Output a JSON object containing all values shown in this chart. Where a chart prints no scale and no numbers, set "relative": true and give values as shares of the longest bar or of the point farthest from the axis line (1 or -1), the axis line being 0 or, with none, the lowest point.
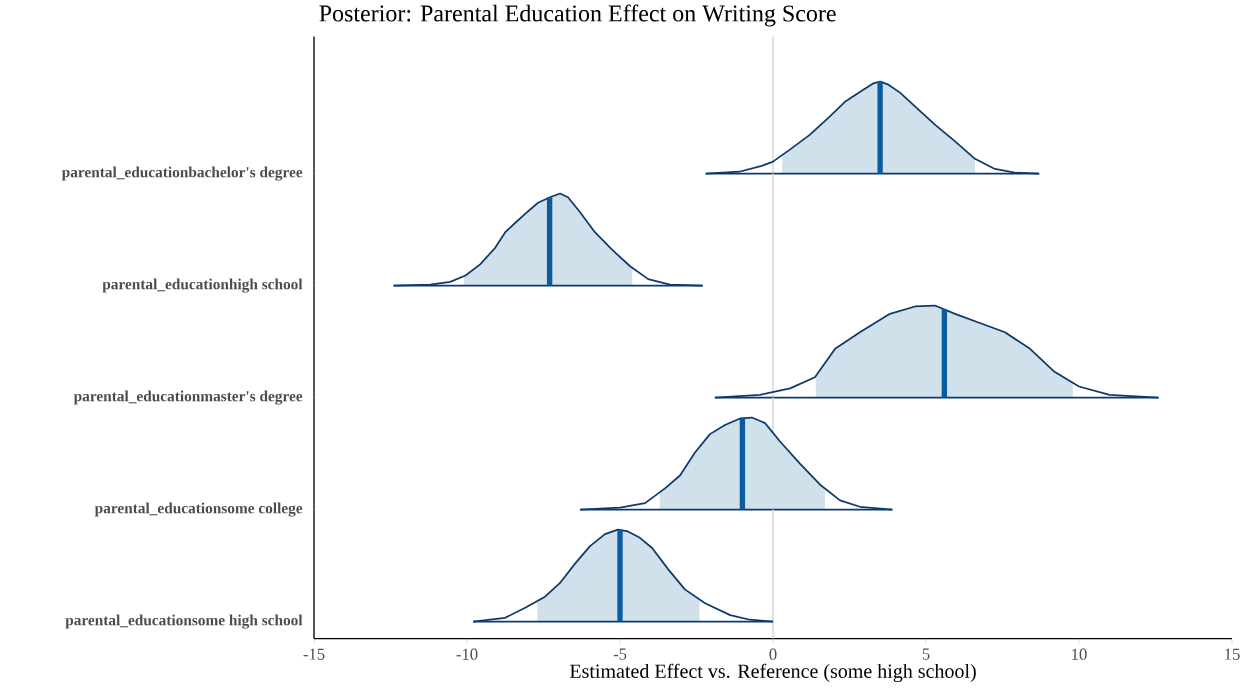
{
  "chart_data": [
    {
      "type": "area",
      "title": "Posterior: Parental Education Effect on Writing Score",
      "ylabel": "parental_educationbachelor's degree",
      "relative": true,
      "xlim": [
        -15,
        15
      ],
      "tick_labels": false,
      "ref_lines": [
        {
          "axis": "x",
          "value": 0,
          "color": "#d9d9d9"
        }
      ],
      "series": [
        {
          "color": "#d1e1ec",
          "x": [
            0.3,
            0.55,
            1.2,
            1.85,
            2.35,
            2.85,
            3.27,
            3.5,
            3.75,
            4.15,
            4.64,
            5.3,
            5.95,
            6.6
          ],
          "values": [
            0.2,
            0.26,
            0.42,
            0.62,
            0.78,
            0.89,
            0.98,
            1.0,
            0.97,
            0.88,
            0.73,
            0.53,
            0.35,
            0.16
          ]
        },
        {
          "type": "line",
          "color": "#0d3a6b",
          "x": [
            -2.2,
            -1.1,
            -0.4,
            0,
            0.55,
            1.2,
            1.85,
            2.35,
            2.85,
            3.27,
            3.5,
            3.75,
            4.15,
            4.64,
            5.3,
            5.95,
            6.6,
            7.25,
            7.9,
            8.7
          ],
          "values": [
            0,
            0.02,
            0.08,
            0.13,
            0.26,
            0.42,
            0.62,
            0.78,
            0.89,
            0.98,
            1.0,
            0.97,
            0.88,
            0.73,
            0.53,
            0.35,
            0.16,
            0.05,
            0.01,
            0
          ]
        },
        {
          "type": "line",
          "color": "#0d3a6b",
          "x": [
            -2.2,
            8.7
          ],
          "values": [
            0,
            0
          ]
        },
        {
          "type": "line",
          "color": "#0b5c9e",
          "x": [
            3.5,
            3.5
          ],
          "values": [
            0,
            1.0
          ]
        }
      ]
    },
    {
      "type": "area",
      "ylabel": "parental_educationhigh school",
      "relative": true,
      "xlim": [
        -15,
        15
      ],
      "tick_labels": false,
      "ref_lines": [
        {
          "axis": "x",
          "value": 0,
          "color": "#d9d9d9"
        }
      ],
      "series": [
        {
          "color": "#d1e1ec",
          "x": [
            -10.1,
            -10.05,
            -9.57,
            -9.08,
            -8.75,
            -8.43,
            -8.1,
            -7.68,
            -7.29,
            -6.96,
            -6.7,
            -6.31,
            -5.82,
            -5.26,
            -4.67,
            -4.6
          ],
          "values": [
            0.1,
            0.11,
            0.23,
            0.41,
            0.58,
            0.68,
            0.78,
            0.9,
            0.96,
            1.0,
            0.96,
            0.8,
            0.58,
            0.39,
            0.21,
            0.19
          ]
        },
        {
          "type": "line",
          "color": "#0d3a6b",
          "x": [
            -12.4,
            -11.2,
            -10.55,
            -10.05,
            -9.57,
            -9.08,
            -8.75,
            -8.43,
            -8.1,
            -7.68,
            -7.29,
            -6.96,
            -6.7,
            -6.31,
            -5.82,
            -5.26,
            -4.67,
            -4.08,
            -3.37,
            -2.3
          ],
          "values": [
            0,
            0.01,
            0.04,
            0.11,
            0.23,
            0.41,
            0.58,
            0.68,
            0.78,
            0.9,
            0.96,
            1.0,
            0.96,
            0.8,
            0.58,
            0.39,
            0.21,
            0.07,
            0.01,
            0
          ]
        },
        {
          "type": "line",
          "color": "#0d3a6b",
          "x": [
            -12.4,
            -2.3
          ],
          "values": [
            0,
            0
          ]
        },
        {
          "type": "line",
          "color": "#0b5c9e",
          "x": [
            -7.3,
            -7.3
          ],
          "values": [
            0,
            0.96
          ]
        }
      ]
    },
    {
      "type": "area",
      "ylabel": "parental_educationmaster's degree",
      "relative": true,
      "xlim": [
        -15,
        15
      ],
      "tick_labels": false,
      "ref_lines": [
        {
          "axis": "x",
          "value": 0,
          "color": "#d9d9d9"
        }
      ],
      "series": [
        {
          "color": "#d1e1ec",
          "x": [
            1.4,
            2.03,
            2.84,
            3.82,
            4.64,
            5.29,
            5.95,
            6.76,
            7.58,
            8.4,
            9.2,
            9.8
          ],
          "values": [
            0.23,
            0.53,
            0.71,
            0.91,
            0.99,
            1.0,
            0.91,
            0.81,
            0.71,
            0.53,
            0.28,
            0.16
          ]
        },
        {
          "type": "line",
          "color": "#0d3a6b",
          "x": [
            -1.9,
            -0.42,
            0.56,
            1.37,
            2.03,
            2.84,
            3.82,
            4.64,
            5.29,
            5.95,
            6.76,
            7.58,
            8.4,
            9.2,
            10.0,
            11.0,
            12.6
          ],
          "values": [
            0,
            0.03,
            0.1,
            0.22,
            0.53,
            0.71,
            0.91,
            0.99,
            1.0,
            0.91,
            0.81,
            0.71,
            0.53,
            0.28,
            0.12,
            0.03,
            0
          ]
        },
        {
          "type": "line",
          "color": "#0d3a6b",
          "x": [
            -1.9,
            12.6
          ],
          "values": [
            0,
            0
          ]
        },
        {
          "type": "line",
          "color": "#0b5c9e",
          "x": [
            5.6,
            5.6
          ],
          "values": [
            0,
            0.96
          ]
        }
      ]
    },
    {
      "type": "area",
      "ylabel": "parental_educationsome college",
      "relative": true,
      "xlim": [
        -15,
        15
      ],
      "tick_labels": false,
      "ref_lines": [
        {
          "axis": "x",
          "value": 0,
          "color": "#d9d9d9"
        }
      ],
      "series": [
        {
          "color": "#d1e1ec",
          "x": [
            -3.7,
            -3.53,
            -3.04,
            -2.55,
            -2.06,
            -1.57,
            -1.08,
            -0.69,
            -0.26,
            0.23,
            0.88,
            1.54,
            1.7
          ],
          "values": [
            0.19,
            0.23,
            0.37,
            0.62,
            0.82,
            0.92,
            0.99,
            1.0,
            0.94,
            0.74,
            0.5,
            0.27,
            0.23
          ]
        },
        {
          "type": "line",
          "color": "#0d3a6b",
          "x": [
            -6.3,
            -5.0,
            -4.18,
            -3.53,
            -3.04,
            -2.55,
            -2.06,
            -1.57,
            -1.08,
            -0.69,
            -0.26,
            0.23,
            0.88,
            1.54,
            2.19,
            2.84,
            3.9
          ],
          "values": [
            0,
            0.02,
            0.07,
            0.23,
            0.37,
            0.62,
            0.82,
            0.92,
            0.99,
            1.0,
            0.94,
            0.74,
            0.5,
            0.27,
            0.1,
            0.03,
            0
          ]
        },
        {
          "type": "line",
          "color": "#0d3a6b",
          "x": [
            -6.3,
            3.9
          ],
          "values": [
            0,
            0
          ]
        },
        {
          "type": "line",
          "color": "#0b5c9e",
          "x": [
            -1.0,
            -1.0
          ],
          "values": [
            0,
            0.99
          ]
        }
      ]
    },
    {
      "type": "area",
      "ylabel": "parental_educationsome high school",
      "xlabel": "Estimated Effect vs. Reference (some high school)",
      "relative": true,
      "xlim": [
        -15,
        15
      ],
      "xticks": [
        -15,
        -10,
        -5,
        0,
        5,
        10,
        15
      ],
      "tick_labels": "x",
      "ref_lines": [
        {
          "axis": "x",
          "value": 0,
          "color": "#d9d9d9"
        }
      ],
      "series": [
        {
          "color": "#d1e1ec",
          "x": [
            -7.7,
            -7.45,
            -6.96,
            -6.47,
            -5.98,
            -5.49,
            -5.07,
            -4.74,
            -4.35,
            -3.95,
            -3.43,
            -2.88,
            -2.4
          ],
          "values": [
            0.22,
            0.27,
            0.42,
            0.63,
            0.82,
            0.95,
            1.0,
            0.98,
            0.91,
            0.8,
            0.57,
            0.35,
            0.24
          ]
        },
        {
          "type": "line",
          "color": "#0d3a6b",
          "x": [
            -9.8,
            -8.76,
            -8.1,
            -7.45,
            -6.96,
            -6.47,
            -5.98,
            -5.49,
            -5.07,
            -4.74,
            -4.35,
            -3.95,
            -3.43,
            -2.88,
            -2.22,
            -1.4,
            -0.75,
            0
          ],
          "values": [
            0,
            0.04,
            0.15,
            0.27,
            0.42,
            0.63,
            0.82,
            0.95,
            1.0,
            0.98,
            0.91,
            0.8,
            0.57,
            0.35,
            0.2,
            0.07,
            0.02,
            0
          ]
        },
        {
          "type": "line",
          "color": "#0d3a6b",
          "x": [
            -9.8,
            0
          ],
          "values": [
            0,
            0
          ]
        },
        {
          "type": "line",
          "color": "#0b5c9e",
          "x": [
            -5.0,
            -5.0
          ],
          "values": [
            0,
            1.0
          ]
        }
      ]
    }
  ]
}
